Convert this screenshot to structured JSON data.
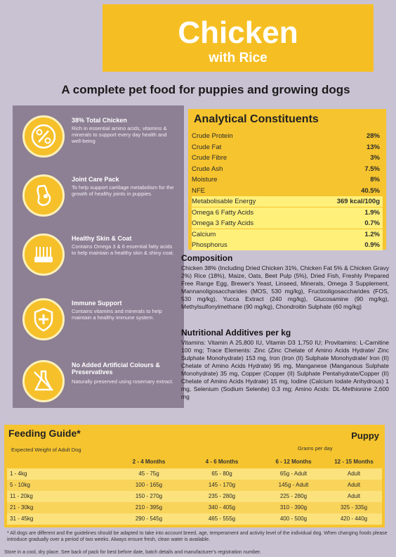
{
  "header": {
    "title": "Chicken",
    "subtitle": "with Rice",
    "tagline": "A complete pet food for puppies and growing dogs"
  },
  "benefits": [
    {
      "icon": "percent-icon",
      "title": "38% Total Chicken",
      "text": "Rich in essential amino acids, vitamins & minerals to support every day health and well-being"
    },
    {
      "icon": "joint-icon",
      "title": "Joint Care Pack",
      "text": "To help support cartilage metabolism for the growth of healthy joints in puppies."
    },
    {
      "icon": "brush-icon",
      "title": "Healthy Skin & Coat",
      "text": "Contains Omega 3 & 6 essential fatty acids to help maintain a healthy skin & shiny coat."
    },
    {
      "icon": "shield-icon",
      "title": "Immune Support",
      "text": "Contains vitamins and minerals to help maintain a healthy immune system."
    },
    {
      "icon": "flask-icon",
      "title": "No Added Artificial Colours & Preservatives",
      "text": "Naturally preserved using rosemary extract."
    }
  ],
  "analytical": {
    "title": "Analytical Constituents",
    "rows": [
      {
        "name": "Crude Protein",
        "value": "28%"
      },
      {
        "name": "Crude Fat",
        "value": "13%"
      },
      {
        "name": "Crude Fibre",
        "value": "3%"
      },
      {
        "name": "Crude Ash",
        "value": "7.5%"
      },
      {
        "name": "Moisture",
        "value": "8%"
      },
      {
        "name": "NFE",
        "value": "40.5%"
      },
      {
        "name": "Metabolisable Energy",
        "value": "369 kcal/100g"
      },
      {
        "name": "Omega 6 Fatty Acids",
        "value": "1.9%"
      },
      {
        "name": "Omega 3 Fatty Acids",
        "value": "0.7%"
      },
      {
        "name": "Calcium",
        "value": "1.2%"
      },
      {
        "name": "Phosphorus",
        "value": "0.9%"
      }
    ]
  },
  "composition": {
    "title": "Composition",
    "text": "Chicken 38% (Including Dried Chicken 31%, Chicken Fat 5% & Chicken Gravy 2%) Rice (18%), Maize, Oats, Beet Pulp (5%), Dried Fish, Freshly Prepared Free Range Egg, Brewer's Yeast, Linseed, Minerals, Omega 3 Supplement, Mannanoligosaccharides (MOS, 530 mg/kg), Fructooligosaccharides (FOS, 530 mg/kg), Yucca Extract (240 mg/kg), Glucosamine (90 mg/kg), Methylsulfonylmethane (90 mg/kg), Chondroitin Sulphate (60 mg/kg)"
  },
  "additives": {
    "title": "Nutritional Additives per kg",
    "text": "Vitamins: Vitamin A 25,800 IU, Vitamin D3 1,750 IU; Provitamins: L-Carnitine 100 mg; Trace Elements: Zinc (Zinc Chelate of Amino Acids Hydrate/ Zinc Sulphate Monohydrate) 153 mg, Iron (Iron (II) Sulphate Monohydrate/ Iron (II) Chelate of Amino Acids Hydrate) 95 mg, Manganese (Manganous Sulphate Monohydrate) 35 mg, Copper (Copper (II) Sulphate Pentahydrate/Copper (II) Chelate of Amino Acids Hydrate) 15 mg, Iodine (Calcium Iodate Anhydrous) 1 mg, Selenium (Sodium Selenite) 0.3 mg; Amino Acids: DL-Methionine 2,600 mg"
  },
  "feeding": {
    "title": "Feeding Guide*",
    "puppy": "Puppy",
    "expected_label": "Expected Weight of Adult Dog",
    "grams_label": "Grams per day",
    "columns": [
      "2 - 4 Months",
      "4 - 6 Months",
      "6 - 12 Months",
      "12 - 15 Months"
    ],
    "rows": [
      {
        "weight": "1 - 4kg",
        "values": [
          "45 - 75g",
          "65 - 80g",
          "65g - Adult",
          "Adult"
        ]
      },
      {
        "weight": "5 - 10kg",
        "values": [
          "100 - 165g",
          "145 - 170g",
          "145g - Adult",
          "Adult"
        ]
      },
      {
        "weight": "11 - 20kg",
        "values": [
          "150 - 270g",
          "235 - 280g",
          "225 - 280g",
          "Adult"
        ]
      },
      {
        "weight": "21 - 30kg",
        "values": [
          "210 - 395g",
          "340 - 405g",
          "310 - 390g",
          "325 - 335g"
        ]
      },
      {
        "weight": "31 - 45kg",
        "values": [
          "290 - 545g",
          "465 - 555g",
          "400 - 500g",
          "420 - 440g"
        ]
      }
    ]
  },
  "note": "* All dogs are different and the guidelines should be adapted to take into account breed, age, temperament and activity level of the individual dog. When changing foods please introduce gradually over a period of two weeks. Always ensure fresh, clean water is available.",
  "storage": "Store in a cool, dry place. See back of pack for best before date, batch details and manufacturer's registration number."
}
